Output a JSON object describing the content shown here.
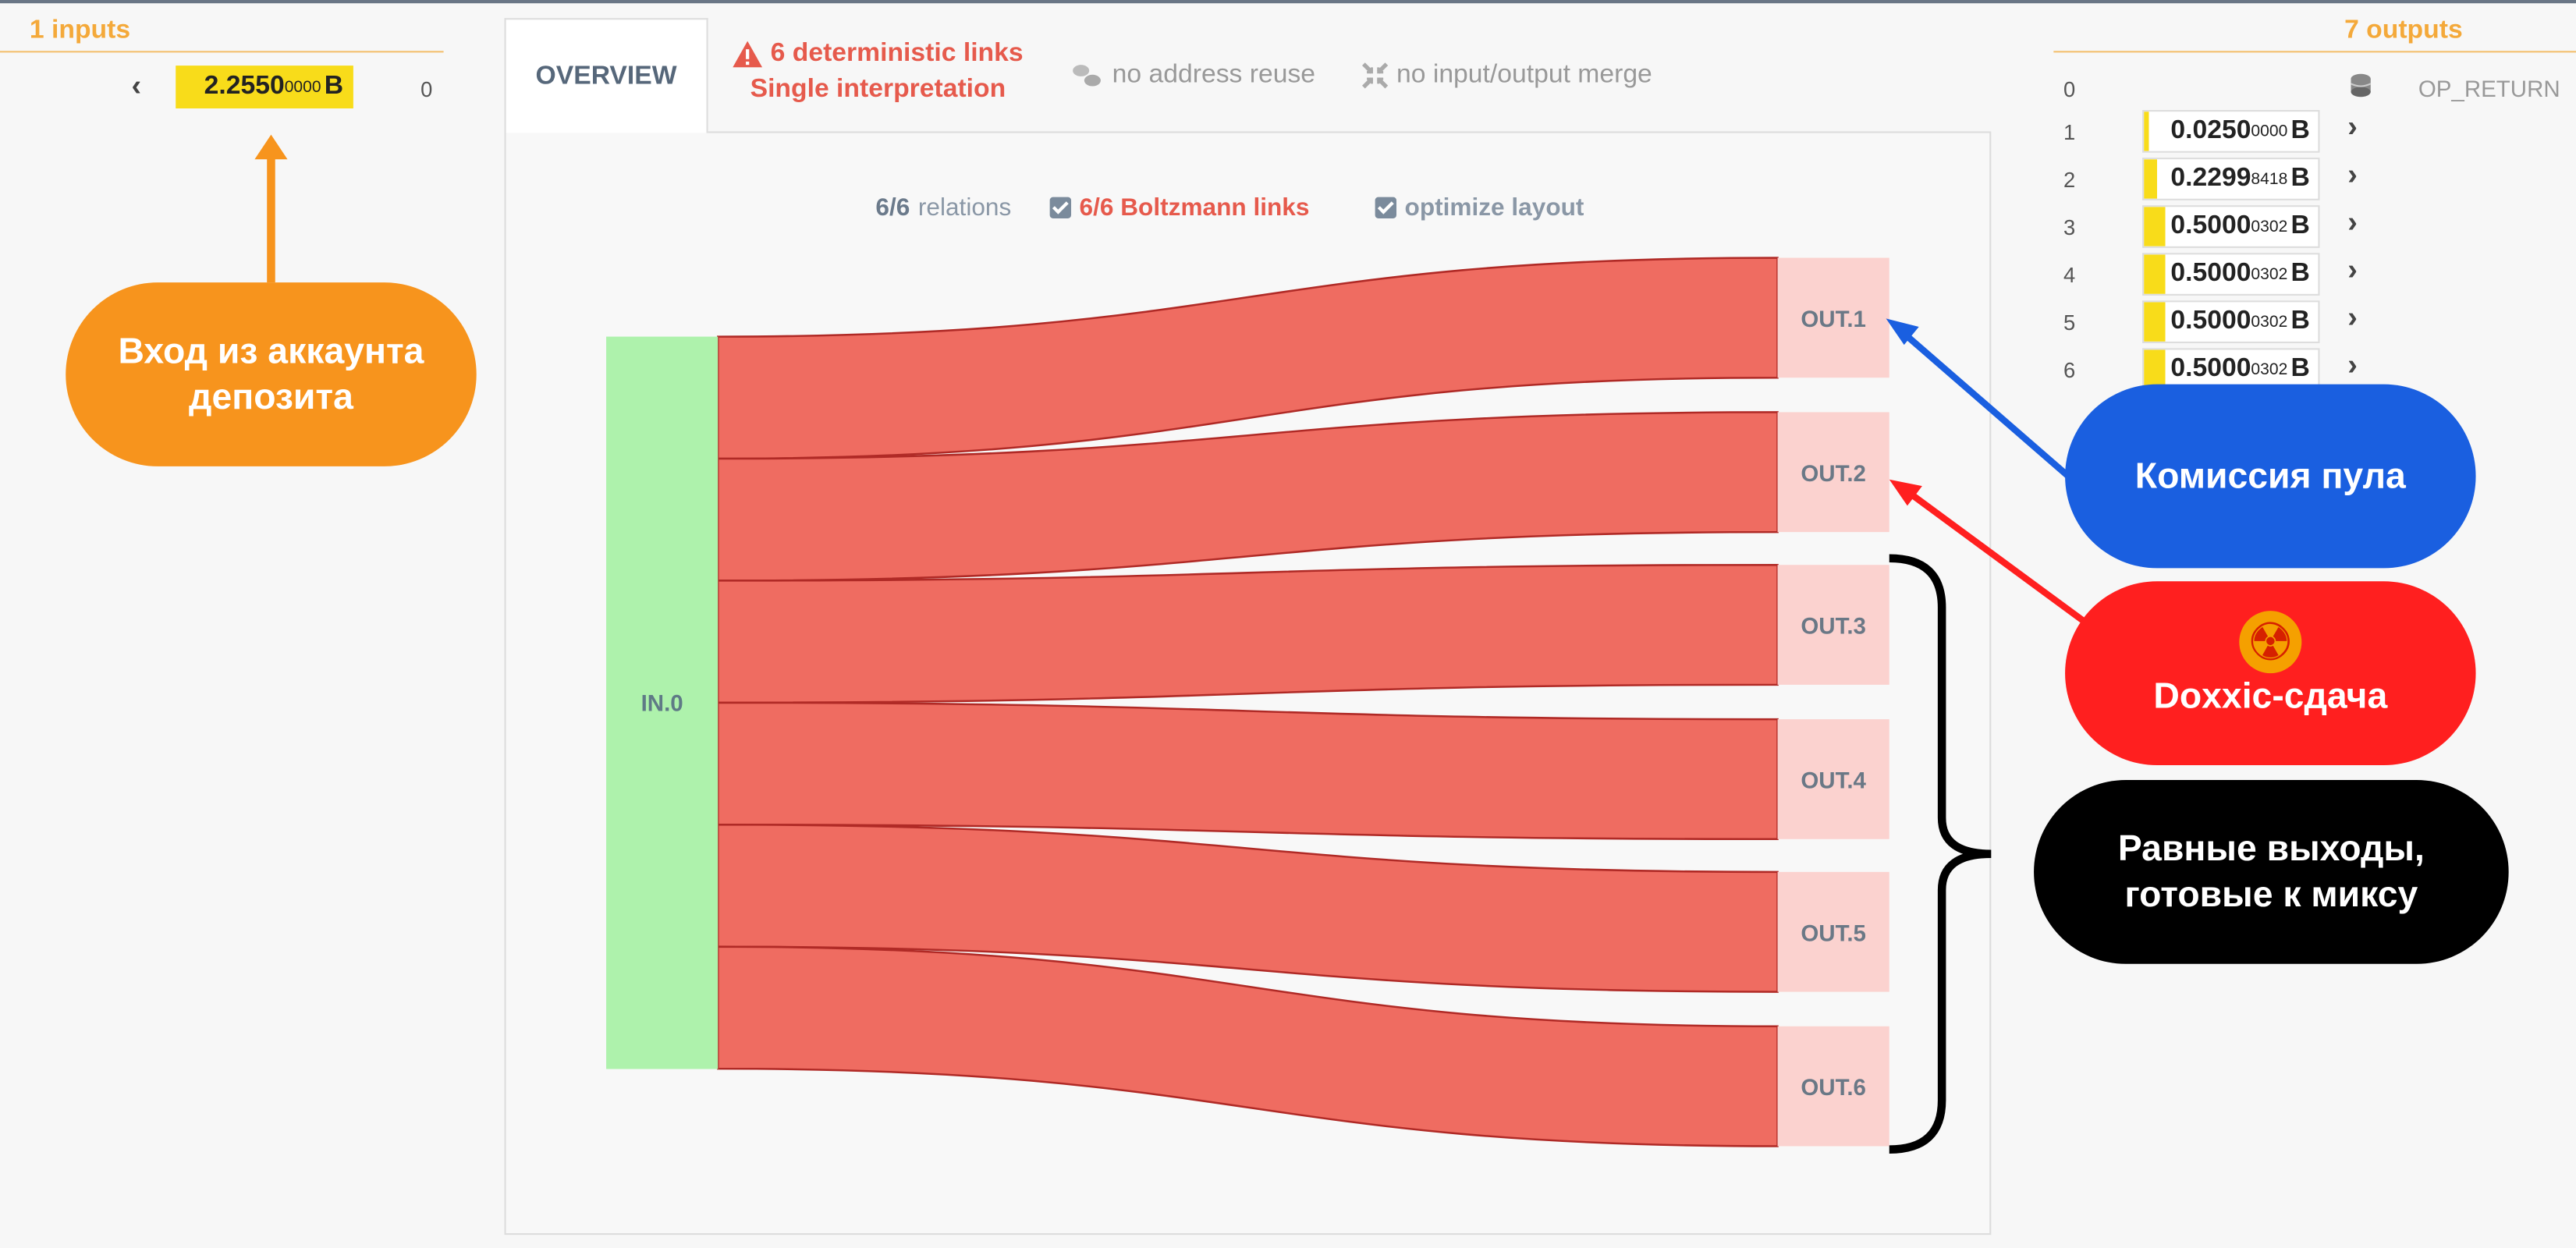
{
  "inputs": {
    "title": "1 inputs",
    "items": [
      {
        "index": "0",
        "int": "2.2550",
        "small": "0000",
        "unit": "B",
        "fill": 1.0
      }
    ]
  },
  "tabs": {
    "overview": "OVERVIEW",
    "warning_line1": "6 deterministic links",
    "warning_line2": "Single interpretation",
    "address_reuse": "no address reuse",
    "io_merge": "no input/output merge"
  },
  "options": {
    "relations_count": "6/6",
    "relations_label": "relations",
    "boltzmann": "6/6 Boltzmann links",
    "optimize": "optimize layout"
  },
  "sankey": {
    "input_node": "IN.0",
    "output_nodes": [
      "OUT.1",
      "OUT.2",
      "OUT.3",
      "OUT.4",
      "OUT.5",
      "OUT.6"
    ],
    "colors": {
      "input": "#aef2ac",
      "output": "#fbd2cf",
      "link": "#ef6c61",
      "link_edge": "#b02a26"
    }
  },
  "outputs": {
    "title": "7 outputs",
    "items": [
      {
        "index": "0",
        "label": "OP_RETURN"
      },
      {
        "index": "1",
        "int": "0.0250",
        "small": "0000",
        "unit": "B",
        "fill": 0.03
      },
      {
        "index": "2",
        "int": "0.2299",
        "small": "8418",
        "unit": "B",
        "fill": 0.08
      },
      {
        "index": "3",
        "int": "0.5000",
        "small": "0302",
        "unit": "B",
        "fill": 0.12
      },
      {
        "index": "4",
        "int": "0.5000",
        "small": "0302",
        "unit": "B",
        "fill": 0.12
      },
      {
        "index": "5",
        "int": "0.5000",
        "small": "0302",
        "unit": "B",
        "fill": 0.12
      },
      {
        "index": "6",
        "int": "0.5000",
        "small": "0302",
        "unit": "B",
        "fill": 0.12
      }
    ]
  },
  "annotations": {
    "deposit": {
      "line1": "Вход из аккаунта",
      "line2": "депозита",
      "color": "#f7941d"
    },
    "pool_fee": {
      "text": "Комиссия пула",
      "color": "#1a5fe0"
    },
    "doxxic": {
      "text": "Doxxic-сдача",
      "icon": "☢",
      "color": "#ff1f1f"
    },
    "equal": {
      "line1": "Равные выходы,",
      "line2": "готовые к миксу",
      "color": "#000000"
    }
  }
}
